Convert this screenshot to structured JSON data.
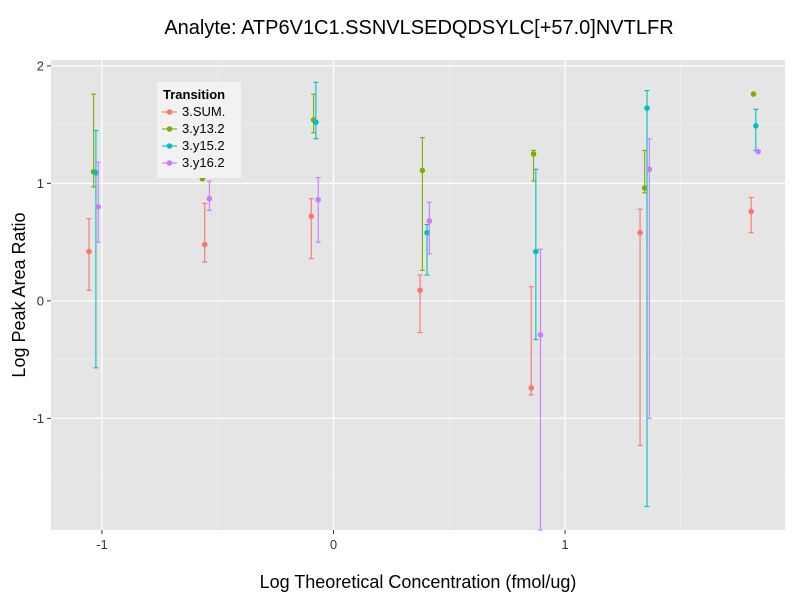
{
  "chart_data": {
    "type": "scatter",
    "title": "Analyte: ATP6V1C1.SSNVLSEDQDSYLC[+57.0]NVTLFR",
    "xlabel": "Log Theoretical Concentration (fmol/ug)",
    "ylabel": "Log Peak Area Ratio",
    "xlim": [
      -1.22,
      1.95
    ],
    "ylim": [
      -1.95,
      2.05
    ],
    "x_ticks": [
      -1,
      0,
      1
    ],
    "x_tick_labels": [
      "-1",
      "0",
      "1"
    ],
    "y_ticks": [
      -1,
      0,
      1,
      2
    ],
    "y_tick_labels": [
      "-1",
      "0",
      "1",
      "2"
    ],
    "grid": true,
    "legend_position": "top-left",
    "legend_title": "Transition",
    "series": [
      {
        "name": "3.SUM.",
        "color": "#F8766D",
        "points": [
          {
            "x": -1.056,
            "y": 0.42,
            "ymin": 0.09,
            "ymax": 0.7
          },
          {
            "x": -0.556,
            "y": 0.48,
            "ymin": 0.33,
            "ymax": 0.83
          },
          {
            "x": -0.096,
            "y": 0.72,
            "ymin": 0.36,
            "ymax": 0.87
          },
          {
            "x": 0.374,
            "y": 0.09,
            "ymin": -0.27,
            "ymax": 0.22
          },
          {
            "x": 0.854,
            "y": -0.74,
            "ymin": -0.8,
            "ymax": 0.12
          },
          {
            "x": 1.324,
            "y": 0.58,
            "ymin": -1.23,
            "ymax": 0.78
          },
          {
            "x": 1.804,
            "y": 0.76,
            "ymin": 0.58,
            "ymax": 0.88
          }
        ]
      },
      {
        "name": "3.y13.2",
        "color": "#7CAE00",
        "points": [
          {
            "x": -1.036,
            "y": 1.1,
            "ymin": 0.97,
            "ymax": 1.76
          },
          {
            "x": -0.566,
            "y": 1.04,
            "ymin": 1.04,
            "ymax": 1.04
          },
          {
            "x": -0.086,
            "y": 1.54,
            "ymin": 1.43,
            "ymax": 1.76
          },
          {
            "x": 0.384,
            "y": 1.11,
            "ymin": 0.26,
            "ymax": 1.39
          },
          {
            "x": 0.864,
            "y": 1.25,
            "ymin": 1.02,
            "ymax": 1.28
          },
          {
            "x": 1.344,
            "y": 0.96,
            "ymin": 0.92,
            "ymax": 1.28
          },
          {
            "x": 1.814,
            "y": 1.76,
            "ymin": 1.76,
            "ymax": 1.76
          }
        ]
      },
      {
        "name": "3.y15.2",
        "color": "#00BFC4",
        "points": [
          {
            "x": -1.026,
            "y": 1.09,
            "ymin": -0.57,
            "ymax": 1.45
          },
          {
            "x": -0.076,
            "y": 1.52,
            "ymin": 1.38,
            "ymax": 1.86
          },
          {
            "x": 0.404,
            "y": 0.58,
            "ymin": 0.22,
            "ymax": 0.65
          },
          {
            "x": 0.874,
            "y": 0.42,
            "ymin": -0.33,
            "ymax": 1.12
          },
          {
            "x": 1.354,
            "y": 1.64,
            "ymin": -1.75,
            "ymax": 1.79
          },
          {
            "x": 1.824,
            "y": 1.49,
            "ymin": 1.28,
            "ymax": 1.63
          }
        ]
      },
      {
        "name": "3.y16.2",
        "color": "#C77CFF",
        "points": [
          {
            "x": -1.016,
            "y": 0.8,
            "ymin": 0.5,
            "ymax": 1.18
          },
          {
            "x": -0.536,
            "y": 0.87,
            "ymin": 0.77,
            "ymax": 1.02
          },
          {
            "x": -0.066,
            "y": 0.86,
            "ymin": 0.5,
            "ymax": 1.05
          },
          {
            "x": 0.414,
            "y": 0.68,
            "ymin": 0.4,
            "ymax": 0.84
          },
          {
            "x": 0.894,
            "y": -0.29,
            "ymin": -1.95,
            "ymax": 0.44
          },
          {
            "x": 1.364,
            "y": 1.12,
            "ymin": -1.0,
            "ymax": 1.38
          },
          {
            "x": 1.834,
            "y": 1.27,
            "ymin": 1.27,
            "ymax": 1.27
          }
        ]
      }
    ]
  }
}
